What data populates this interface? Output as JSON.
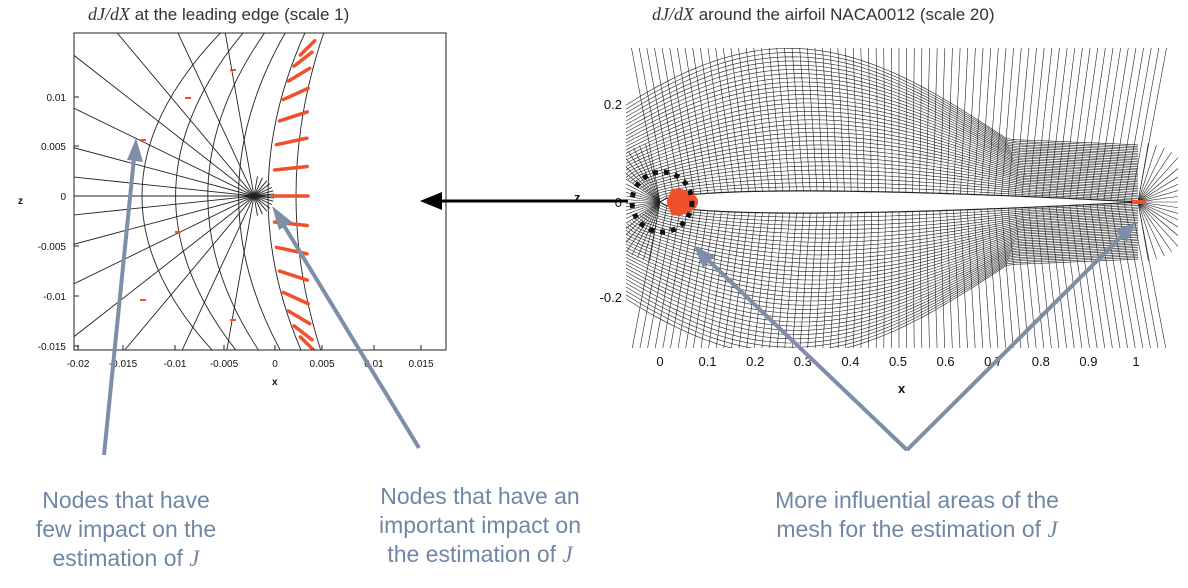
{
  "left_panel": {
    "title_var": "dJ/dX",
    "title_rest": " at the leading edge (scale 1)",
    "x_ticks": [
      "-0.02",
      "-0.015",
      "-0.01",
      "-0.005",
      "0",
      "0.005",
      "0.01",
      "0.015"
    ],
    "y_ticks": [
      "0.01",
      "0.005",
      "0",
      "-0.005",
      "-0.01",
      "-0.015"
    ],
    "x_label": "x",
    "y_label": "z"
  },
  "right_panel": {
    "title_var": "dJ/dX",
    "title_rest": " around the airfoil NACA0012 (scale 20)",
    "x_ticks": [
      "0",
      "0.1",
      "0.2",
      "0.3",
      "0.4",
      "0.5",
      "0.6",
      "0.7",
      "0.8",
      "0.9",
      "1"
    ],
    "y_ticks": [
      "0.2",
      "0",
      "-0.2"
    ],
    "x_label": "x",
    "y_label": "z"
  },
  "captions": {
    "few_impact": [
      "Nodes that have",
      "few  impact on the",
      "estimation of "
    ],
    "few_impact_var": "J",
    "important_impact": [
      "Nodes that have an",
      "important impact on",
      "the estimation of "
    ],
    "important_impact_var": "J",
    "influential": [
      "More influential areas of the",
      "mesh for the estimation of "
    ],
    "influential_var": "J"
  },
  "colors": {
    "sensitivity": "#f0502a",
    "callout_arrow": "#7d8ea6",
    "caption_text": "#6f86a6",
    "mesh": "#222222"
  }
}
